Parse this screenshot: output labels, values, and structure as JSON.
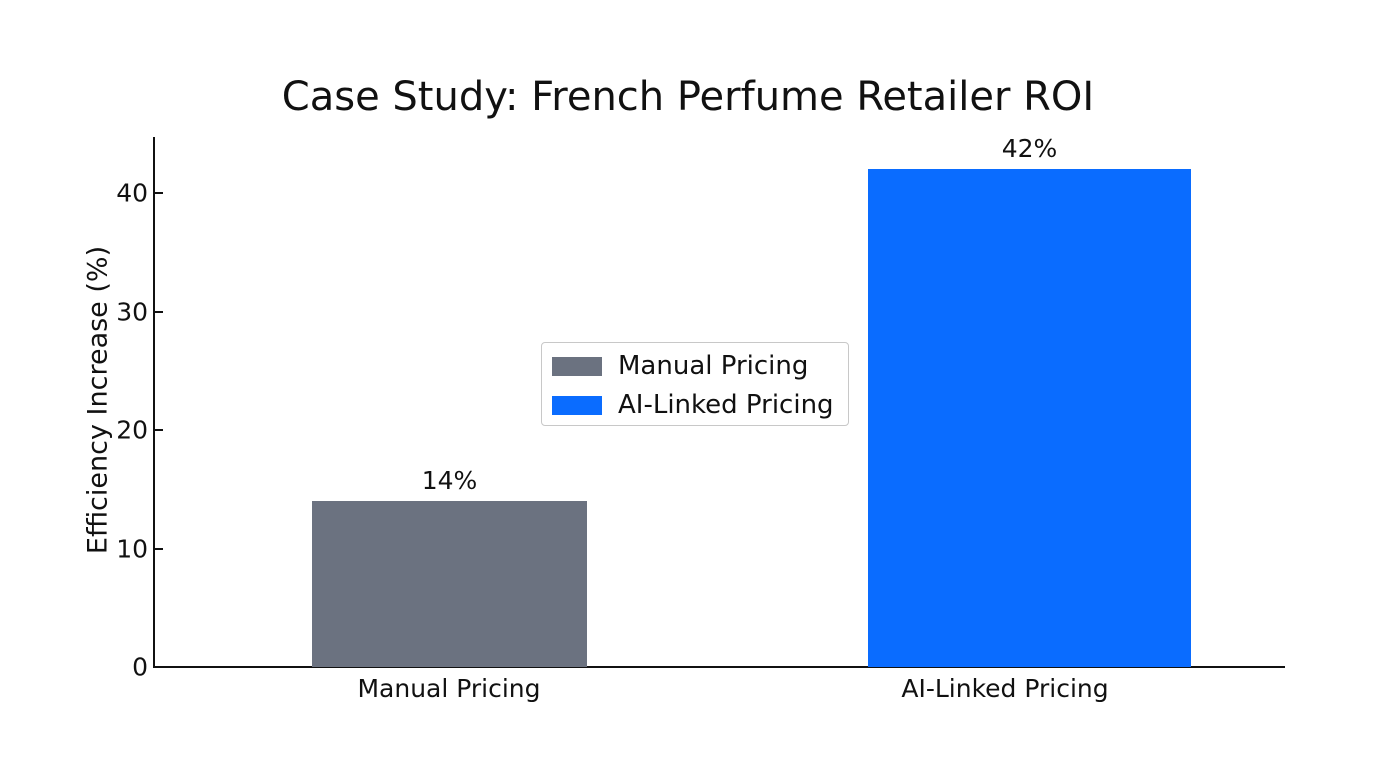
{
  "chart_data": {
    "type": "bar",
    "title": "Case Study: French Perfume Retailer ROI",
    "xlabel": "",
    "ylabel": "Efficiency Increase (%)",
    "categories": [
      "Manual Pricing",
      "AI-Linked Pricing"
    ],
    "values": [
      14,
      42
    ],
    "value_labels": [
      "14%",
      "42%"
    ],
    "colors": [
      "#6b7280",
      "#0a6cff"
    ],
    "ylim": [
      0,
      45
    ],
    "yticks": [
      0,
      10,
      20,
      30,
      40
    ],
    "grid": false,
    "legend": {
      "position": "center",
      "entries": [
        {
          "label": "Manual Pricing",
          "color": "#6b7280"
        },
        {
          "label": "AI-Linked Pricing",
          "color": "#0a6cff"
        }
      ]
    }
  },
  "ytick_labels": [
    "0",
    "10",
    "20",
    "30",
    "40"
  ]
}
